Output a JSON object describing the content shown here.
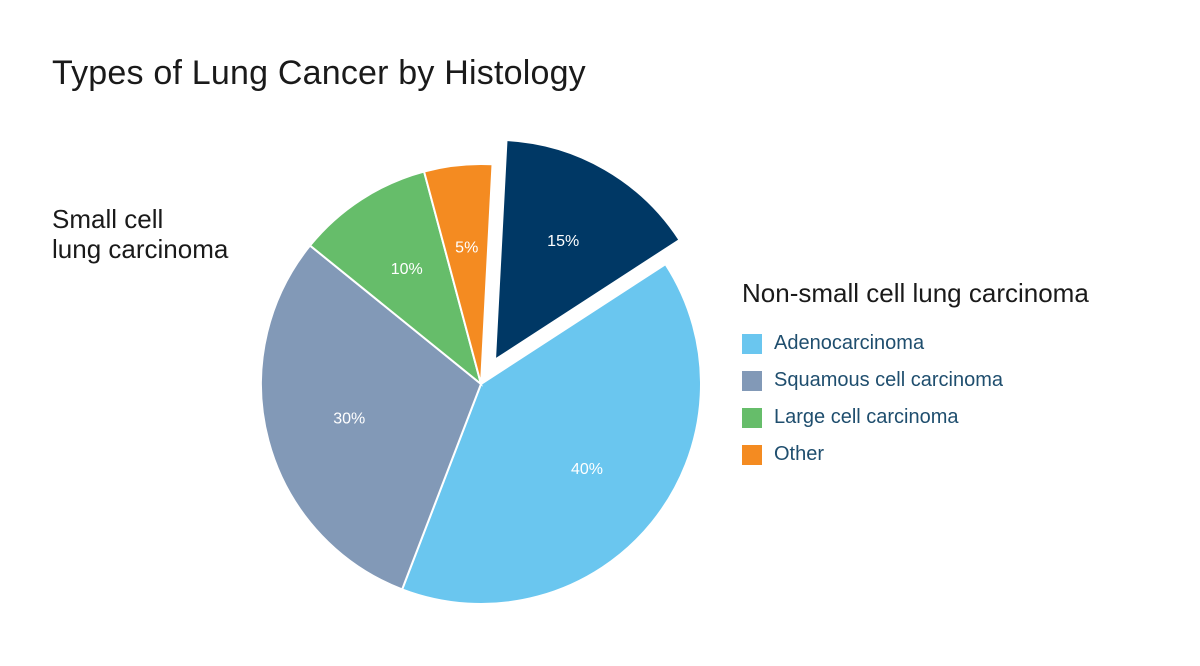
{
  "title": "Types of Lung Cancer by Histology",
  "callout": {
    "line1": "Small cell",
    "line2": "lung carcinoma"
  },
  "legend": {
    "title": "Non-small cell lung carcinoma",
    "items": [
      {
        "label": "Adenocarcinoma",
        "color": "#6ac6ef"
      },
      {
        "label": "Squamous cell carcinoma",
        "color": "#8299b7"
      },
      {
        "label": "Large cell carcinoma",
        "color": "#66bd6a"
      },
      {
        "label": "Other",
        "color": "#f48b21"
      }
    ]
  },
  "chart_data": {
    "type": "pie",
    "title": "Types of Lung Cancer by Histology",
    "slices": [
      {
        "name": "Adenocarcinoma",
        "value": 40,
        "label": "40%",
        "color": "#6ac6ef",
        "exploded": false
      },
      {
        "name": "Squamous cell carcinoma",
        "value": 30,
        "label": "30%",
        "color": "#8299b7",
        "exploded": false
      },
      {
        "name": "Large cell carcinoma",
        "value": 10,
        "label": "10%",
        "color": "#66bd6a",
        "exploded": false
      },
      {
        "name": "Other",
        "value": 5,
        "label": "5%",
        "color": "#f48b21",
        "exploded": false
      },
      {
        "name": "Small cell lung carcinoma",
        "value": 15,
        "label": "15%",
        "color": "#003865",
        "exploded": true
      }
    ],
    "start_angle_deg": -33,
    "direction": "clockwise"
  }
}
